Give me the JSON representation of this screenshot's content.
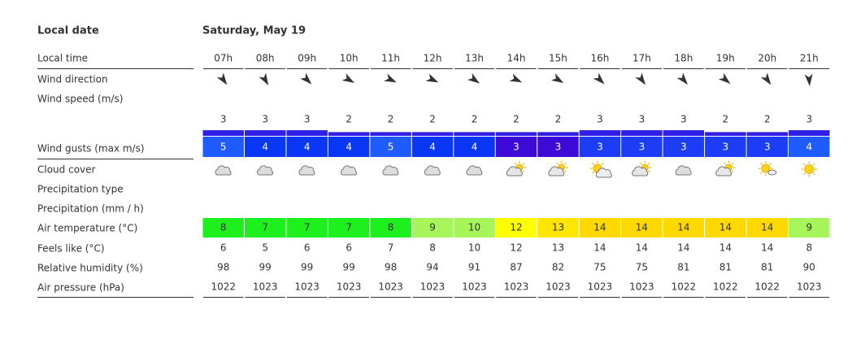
{
  "header": {
    "date_label": "Local date",
    "date": "Saturday, May 19"
  },
  "labels": {
    "local_time": "Local time",
    "wind_direction": "Wind direction",
    "wind_speed": "Wind speed  (m/s)",
    "wind_gusts": "Wind gusts  (max m/s)",
    "cloud_cover": "Cloud cover",
    "precipitation_type": "Precipitation type",
    "precipitation": "Precipitation  (mm / h)",
    "air_temperature": "Air temperature  (°C)",
    "feels_like": "Feels like  (°C)",
    "humidity": "Relative humidity  (%)",
    "pressure": "Air pressure  (hPa)"
  },
  "hours": [
    "07h",
    "08h",
    "09h",
    "10h",
    "11h",
    "12h",
    "13h",
    "14h",
    "15h",
    "16h",
    "17h",
    "18h",
    "19h",
    "20h",
    "21h"
  ],
  "wind_speed": [
    3,
    3,
    3,
    2,
    2,
    2,
    2,
    2,
    2,
    3,
    3,
    3,
    2,
    2,
    3
  ],
  "wind_speed_color": "#2f1ee8",
  "wind_gusts": [
    5,
    4,
    4,
    4,
    5,
    4,
    4,
    3,
    3,
    3,
    3,
    3,
    3,
    3,
    4
  ],
  "wind_gust_colors": [
    "#1f5cff",
    "#0a36f5",
    "#0a36f5",
    "#0a36f5",
    "#1f5cff",
    "#0a36f5",
    "#0a36f5",
    "#3d0ad8",
    "#3d0ad8",
    "#1c3cf5",
    "#1c3cf5",
    "#1c3cf5",
    "#1c3cf5",
    "#1c3cf5",
    "#1f5cff"
  ],
  "air_temperature": [
    8,
    7,
    7,
    7,
    8,
    9,
    10,
    12,
    13,
    14,
    14,
    14,
    14,
    14,
    9
  ],
  "air_temperature_colors": [
    "#1ef01e",
    "#1ef01e",
    "#1ef01e",
    "#1ef01e",
    "#1ef01e",
    "#a6f55a",
    "#a6f55a",
    "#ffff00",
    "#ffe600",
    "#ffd800",
    "#ffd800",
    "#ffd800",
    "#ffd800",
    "#ffd800",
    "#a6f55a"
  ],
  "feels_like": [
    6,
    5,
    6,
    6,
    7,
    8,
    10,
    12,
    13,
    14,
    14,
    14,
    14,
    14,
    8
  ],
  "humidity": [
    98,
    99,
    99,
    99,
    98,
    94,
    91,
    87,
    82,
    75,
    75,
    81,
    81,
    81,
    90
  ],
  "pressure": [
    1022,
    1023,
    1023,
    1023,
    1023,
    1023,
    1023,
    1023,
    1023,
    1023,
    1023,
    1022,
    1022,
    1022,
    1023
  ]
}
